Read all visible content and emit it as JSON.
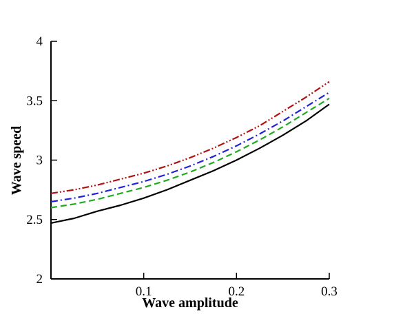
{
  "chart_data": {
    "type": "line",
    "title": "",
    "xlabel": "Wave amplitude",
    "ylabel": "Wave speed",
    "xlim": [
      0,
      0.3
    ],
    "ylim": [
      2,
      4
    ],
    "xticks": [
      0.1,
      0.2,
      0.3
    ],
    "xtick_labels": [
      "0.1",
      "0.2",
      "0.3"
    ],
    "yticks": [
      2,
      2.5,
      3,
      3.5,
      4
    ],
    "ytick_labels": [
      "2",
      "2.5",
      "3",
      "3.5",
      "4"
    ],
    "grid": false,
    "legend": false,
    "x": [
      0,
      0.025,
      0.05,
      0.075,
      0.1,
      0.125,
      0.15,
      0.175,
      0.2,
      0.225,
      0.25,
      0.275,
      0.3
    ],
    "series": [
      {
        "color": "#000000",
        "dash": "solid",
        "values": [
          2.47,
          2.51,
          2.57,
          2.62,
          2.68,
          2.75,
          2.83,
          2.91,
          3.0,
          3.1,
          3.21,
          3.33,
          3.47
        ]
      },
      {
        "color": "#1faa1f",
        "dash": "dashed",
        "values": [
          2.6,
          2.63,
          2.67,
          2.72,
          2.77,
          2.83,
          2.9,
          2.98,
          3.07,
          3.17,
          3.28,
          3.4,
          3.52
        ]
      },
      {
        "color": "#1f1fd8",
        "dash": "dash-dot",
        "values": [
          2.65,
          2.68,
          2.72,
          2.77,
          2.82,
          2.88,
          2.95,
          3.03,
          3.12,
          3.22,
          3.33,
          3.45,
          3.57
        ]
      },
      {
        "color": "#b01010",
        "dash": "dash-dot-dot",
        "values": [
          2.72,
          2.75,
          2.79,
          2.84,
          2.89,
          2.95,
          3.02,
          3.1,
          3.19,
          3.29,
          3.41,
          3.53,
          3.66
        ]
      }
    ]
  }
}
